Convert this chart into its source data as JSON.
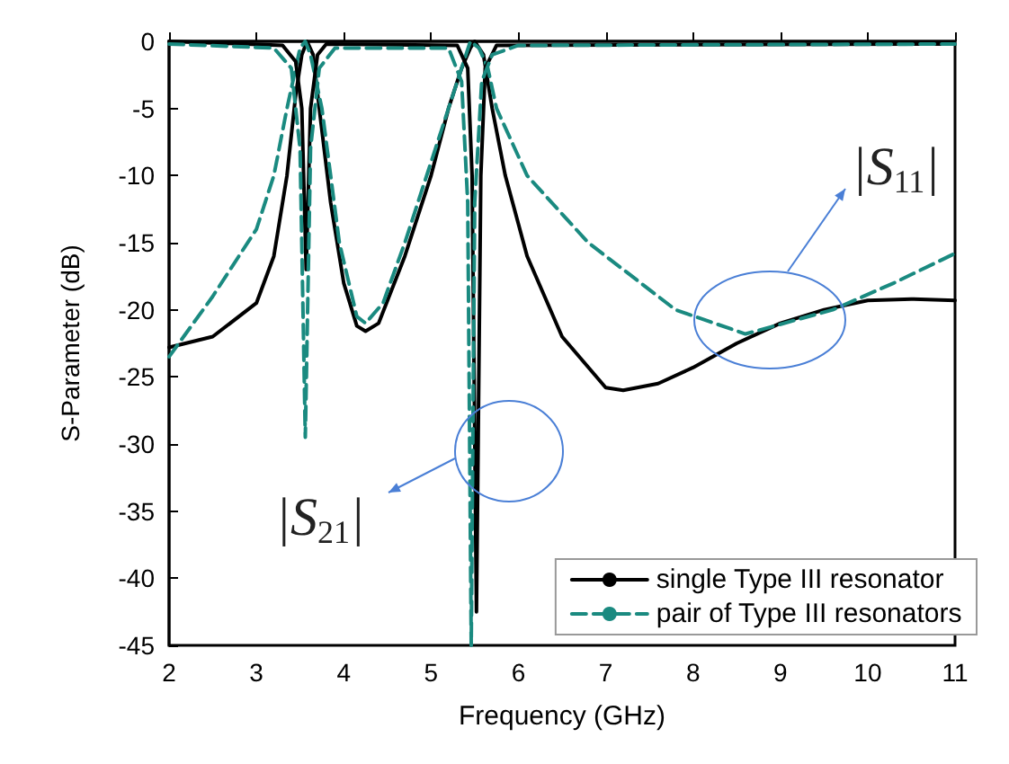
{
  "chart_data": {
    "type": "line",
    "xlabel": "Frequency (GHz)",
    "ylabel": "S-Parameter (dB)",
    "xlim": [
      2,
      11
    ],
    "xticks": [
      2,
      3,
      4,
      5,
      6,
      7,
      8,
      9,
      10,
      11
    ],
    "ylim": [
      -45,
      0
    ],
    "yticks": [
      -45,
      -40,
      -35,
      -30,
      -25,
      -20,
      -15,
      -10,
      -5,
      0
    ],
    "grid": false,
    "legend": "bottom right",
    "marker": "none",
    "series": [
      {
        "name": "single Type III resonator",
        "color": "#000000",
        "line_style": "solid",
        "x": [
          2,
          2.5,
          3,
          3.2,
          3.35,
          3.45,
          3.52,
          3.58,
          3.65,
          3.72,
          3.85,
          4,
          4.15,
          4.25,
          4.4,
          4.7,
          5,
          5.2,
          5.35,
          5.45,
          5.5,
          5.6,
          5.7,
          5.85,
          6.1,
          6.5,
          7,
          7.2,
          7.6,
          8,
          8.5,
          9,
          9.5,
          10,
          10.5,
          11
        ],
        "values": [
          -22.8,
          -22,
          -19.5,
          -16,
          -10,
          -4,
          -1,
          0,
          -1,
          -5,
          -12,
          -18,
          -21.2,
          -21.6,
          -21,
          -16,
          -10,
          -5,
          -2,
          -0.5,
          0,
          -1,
          -5,
          -10,
          -16,
          -22,
          -25.8,
          -26,
          -25.5,
          -24.3,
          -22.5,
          -21,
          -20,
          -19.3,
          -19.2,
          -19.3
        ]
      },
      {
        "name": "pair of Type III resonators",
        "color": "#1a8a80",
        "line_style": "dashed",
        "x": [
          2,
          2.5,
          3,
          3.2,
          3.35,
          3.45,
          3.5,
          3.56,
          3.62,
          3.75,
          3.95,
          4.15,
          4.25,
          4.45,
          4.7,
          5,
          5.2,
          5.35,
          5.45,
          5.55,
          5.65,
          5.75,
          6.1,
          6.8,
          7.8,
          8.6,
          9.6,
          10.3,
          11
        ],
        "values": [
          -23.5,
          -19,
          -14,
          -10,
          -5,
          -2,
          -0.5,
          0,
          -1,
          -5,
          -15,
          -20.5,
          -21,
          -19.5,
          -15,
          -9,
          -5,
          -2,
          0,
          -0.5,
          -2,
          -5,
          -10,
          -15,
          -20,
          -21.8,
          -20,
          -18,
          -15.8
        ]
      },
      {
        "color": "#000000",
        "line_style": "solid",
        "x": [
          2,
          3.3,
          3.45,
          3.52,
          3.57,
          3.62,
          3.7,
          3.8,
          5.3,
          5.42,
          5.47,
          5.52,
          5.57,
          5.62,
          5.75,
          11
        ],
        "values": [
          0,
          -0.3,
          -1.5,
          -5,
          -17,
          -5,
          -1,
          -0.2,
          -0.3,
          -2,
          -10,
          -42.5,
          -10,
          -2,
          -0.3,
          -0.2
        ]
      },
      {
        "color": "#1a8a80",
        "line_style": "dashed",
        "x": [
          2,
          3.2,
          3.4,
          3.5,
          3.56,
          3.62,
          3.72,
          3.9,
          5.2,
          5.35,
          5.42,
          5.46,
          5.5,
          5.58,
          5.7,
          6,
          11
        ],
        "values": [
          -0.2,
          -0.5,
          -2,
          -8,
          -29.5,
          -8,
          -2,
          -0.5,
          -0.5,
          -3,
          -12,
          -45,
          -12,
          -3,
          -1,
          -0.3,
          -0.2
        ]
      }
    ],
    "annotations": [
      "|S$_{11}$|",
      "|S$_{21}$|"
    ]
  }
}
